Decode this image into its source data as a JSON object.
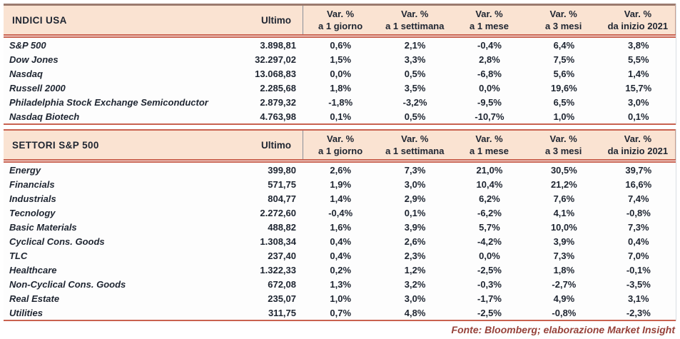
{
  "colors": {
    "header_bg": "#fae3d2",
    "rule_red": "#c96250",
    "rule_brown": "#9b7b6f",
    "text": "#1e2531",
    "footer_text": "#96423a"
  },
  "columns": {
    "ultimo": "Ultimo",
    "vars": [
      {
        "line1": "Var. %",
        "line2": "a 1 giorno"
      },
      {
        "line1": "Var. %",
        "line2": "a 1 settimana"
      },
      {
        "line1": "Var. %",
        "line2": "a 1 mese"
      },
      {
        "line1": "Var. %",
        "line2": "a 3 mesi"
      },
      {
        "line1": "Var. %",
        "line2": "da inizio 2021"
      }
    ]
  },
  "indici": {
    "title": "INDICI USA",
    "rows": [
      {
        "label": "S&P 500",
        "ultimo": "3.898,81",
        "vars": [
          "0,6%",
          "2,1%",
          "-0,4%",
          "6,4%",
          "3,8%"
        ]
      },
      {
        "label": "Dow Jones",
        "ultimo": "32.297,02",
        "vars": [
          "1,5%",
          "3,3%",
          "2,8%",
          "7,5%",
          "5,5%"
        ]
      },
      {
        "label": "Nasdaq",
        "ultimo": "13.068,83",
        "vars": [
          "0,0%",
          "0,5%",
          "-6,8%",
          "5,6%",
          "1,4%"
        ]
      },
      {
        "label": "Russell 2000",
        "ultimo": "2.285,68",
        "vars": [
          "1,8%",
          "3,5%",
          "0,0%",
          "19,6%",
          "15,7%"
        ]
      },
      {
        "label": "Philadelphia Stock Exchange Semiconductor",
        "ultimo": "2.879,32",
        "vars": [
          "-1,8%",
          "-3,2%",
          "-9,5%",
          "6,5%",
          "3,0%"
        ]
      },
      {
        "label": "Nasdaq Biotech",
        "ultimo": "4.763,98",
        "vars": [
          "0,1%",
          "0,5%",
          "-10,7%",
          "1,0%",
          "0,1%"
        ]
      }
    ]
  },
  "settori": {
    "title": "SETTORI S&P 500",
    "rows": [
      {
        "label": "Energy",
        "ultimo": "399,80",
        "vars": [
          "2,6%",
          "7,3%",
          "21,0%",
          "30,5%",
          "39,7%"
        ]
      },
      {
        "label": "Financials",
        "ultimo": "571,75",
        "vars": [
          "1,9%",
          "3,0%",
          "10,4%",
          "21,2%",
          "16,6%"
        ]
      },
      {
        "label": "Industrials",
        "ultimo": "804,77",
        "vars": [
          "1,4%",
          "2,9%",
          "6,2%",
          "7,6%",
          "7,4%"
        ]
      },
      {
        "label": "Tecnology",
        "ultimo": "2.272,60",
        "vars": [
          "-0,4%",
          "0,1%",
          "-6,2%",
          "4,1%",
          "-0,8%"
        ]
      },
      {
        "label": "Basic Materials",
        "ultimo": "488,82",
        "vars": [
          "1,6%",
          "3,9%",
          "5,7%",
          "10,0%",
          "7,3%"
        ]
      },
      {
        "label": "Cyclical Cons. Goods",
        "ultimo": "1.308,34",
        "vars": [
          "0,4%",
          "2,6%",
          "-4,2%",
          "3,9%",
          "0,4%"
        ]
      },
      {
        "label": "TLC",
        "ultimo": "237,40",
        "vars": [
          "0,4%",
          "2,3%",
          "0,0%",
          "7,3%",
          "7,0%"
        ]
      },
      {
        "label": "Healthcare",
        "ultimo": "1.322,33",
        "vars": [
          "0,2%",
          "1,2%",
          "-2,5%",
          "1,8%",
          "-0,1%"
        ]
      },
      {
        "label": "Non-Cyclical Cons. Goods",
        "ultimo": "672,08",
        "vars": [
          "1,3%",
          "3,2%",
          "-0,3%",
          "-2,7%",
          "-3,5%"
        ]
      },
      {
        "label": "Real Estate",
        "ultimo": "235,07",
        "vars": [
          "1,0%",
          "3,0%",
          "-1,7%",
          "4,9%",
          "3,1%"
        ]
      },
      {
        "label": "Utilities",
        "ultimo": "311,75",
        "vars": [
          "0,7%",
          "4,8%",
          "-2,5%",
          "-0,8%",
          "-2,3%"
        ]
      }
    ]
  },
  "footer": {
    "source": "Fonte: Bloomberg; elaborazione Market Insight"
  }
}
